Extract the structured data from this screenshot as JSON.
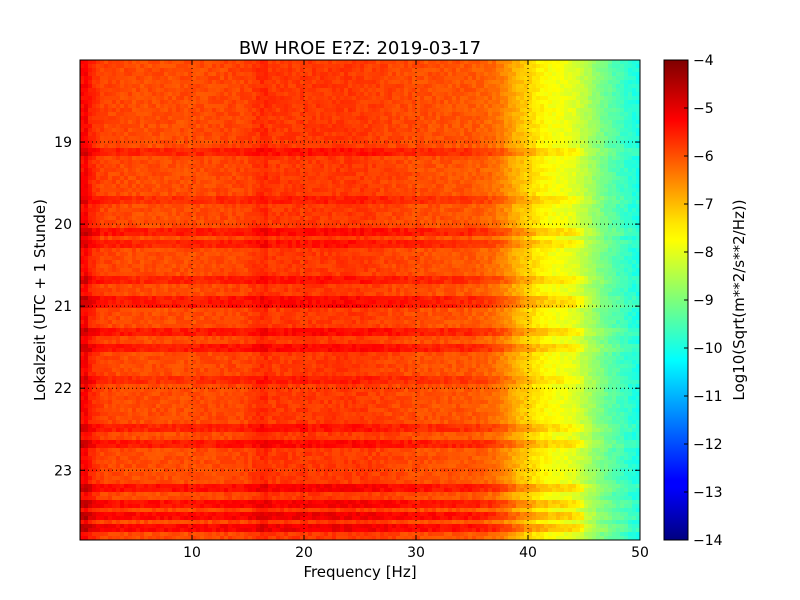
{
  "chart_data": {
    "type": "heatmap",
    "title": "BW HROE E?Z: 2019-03-17",
    "xlabel": "Frequency [Hz]",
    "ylabel": "Lokalzeit (UTC + 1 Stunde)",
    "xlim": [
      0,
      50
    ],
    "ylim": [
      18.0,
      23.85
    ],
    "y_axis_inverted": true,
    "x_ticks": [
      10,
      20,
      30,
      40,
      50
    ],
    "y_ticks": [
      19,
      20,
      21,
      22,
      23
    ],
    "x_tick_labels": [
      "10",
      "20",
      "30",
      "40",
      "50"
    ],
    "y_tick_labels": [
      "19",
      "20",
      "21",
      "22",
      "23"
    ],
    "grid": true,
    "colorbar": {
      "label": "Log10(Sqrt(m**2/s**2/Hz))",
      "range": [
        -14,
        -4
      ],
      "ticks": [
        -4,
        -5,
        -6,
        -7,
        -8,
        -9,
        -10,
        -11,
        -12,
        -13,
        -14
      ],
      "tick_labels": [
        "−4",
        "−5",
        "−6",
        "−7",
        "−8",
        "−9",
        "−10",
        "−11",
        "−12",
        "−13",
        "−14"
      ],
      "colormap": "jet"
    },
    "frequency_profile": {
      "frequency_hz": [
        0,
        0.5,
        1,
        2,
        5,
        10,
        15,
        16.5,
        17,
        20,
        25,
        30,
        35,
        37,
        38,
        39,
        40,
        41,
        42,
        43,
        44,
        45,
        46,
        47,
        48,
        49,
        50
      ],
      "level": [
        -5.4,
        -5.2,
        -5.6,
        -5.9,
        -6.0,
        -6.0,
        -5.9,
        -5.6,
        -5.8,
        -5.8,
        -5.8,
        -6.0,
        -6.1,
        -6.3,
        -6.6,
        -7.0,
        -7.3,
        -7.6,
        -7.8,
        -7.9,
        -8.0,
        -8.4,
        -8.8,
        -9.2,
        -9.5,
        -9.8,
        -10.0
      ]
    },
    "time_bands": [
      {
        "hour": 19.1,
        "delta": 0.4
      },
      {
        "hour": 19.7,
        "delta": 0.3
      },
      {
        "hour": 20.1,
        "delta": 0.5
      },
      {
        "hour": 20.25,
        "delta": 0.4
      },
      {
        "hour": 20.7,
        "delta": 0.4
      },
      {
        "hour": 20.95,
        "delta": 0.5
      },
      {
        "hour": 21.3,
        "delta": 0.5
      },
      {
        "hour": 21.5,
        "delta": 0.5
      },
      {
        "hour": 21.9,
        "delta": 0.3
      },
      {
        "hour": 22.5,
        "delta": 0.4
      },
      {
        "hour": 22.7,
        "delta": 0.5
      },
      {
        "hour": 23.2,
        "delta": 0.6
      },
      {
        "hour": 23.4,
        "delta": 0.6
      },
      {
        "hour": 23.55,
        "delta": 0.7
      },
      {
        "hour": 23.7,
        "delta": 0.7
      }
    ]
  }
}
